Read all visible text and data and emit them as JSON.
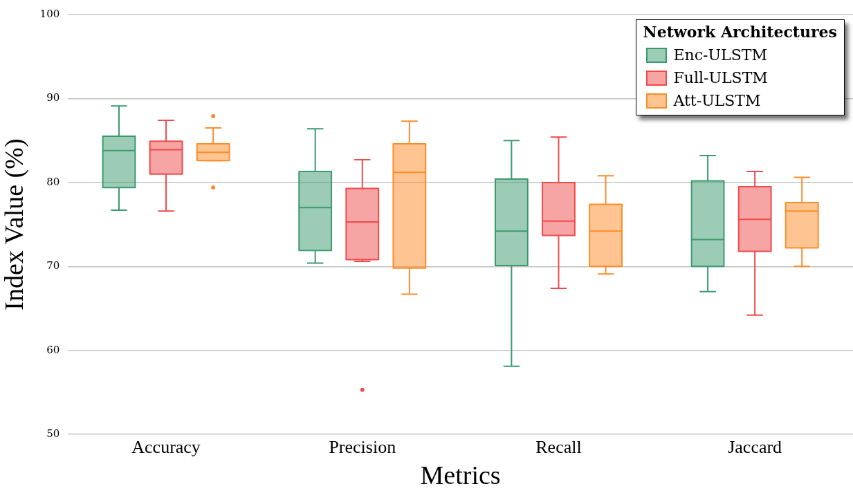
{
  "chart_data": {
    "type": "box",
    "xlabel": "Metrics",
    "ylabel": "Index Value (%)",
    "legend_title": "Network Architectures",
    "legend": "top right",
    "grid": "y",
    "categories": [
      "Accuracy",
      "Precision",
      "Recall",
      "Jaccard"
    ],
    "ylim": [
      50,
      100
    ],
    "yticks": [
      50,
      60,
      70,
      80,
      90,
      100
    ],
    "series": [
      {
        "name": "Enc-ULSTM",
        "color": "#3a9a6e",
        "boxes": [
          {
            "low": 76.7,
            "q1": 79.4,
            "median": 83.8,
            "q3": 85.5,
            "high": 89.1
          },
          {
            "low": 70.4,
            "q1": 71.9,
            "median": 77.0,
            "q3": 81.3,
            "high": 86.4
          },
          {
            "low": 58.1,
            "q1": 70.1,
            "median": 74.2,
            "q3": 80.4,
            "high": 85.0
          },
          {
            "low": 67.0,
            "q1": 70.0,
            "median": 73.2,
            "q3": 80.2,
            "high": 83.2
          }
        ]
      },
      {
        "name": "Full-ULSTM",
        "color": "#f04a4a",
        "boxes": [
          {
            "low": 76.6,
            "q1": 81.0,
            "median": 83.9,
            "q3": 84.9,
            "high": 87.4
          },
          {
            "low": 70.6,
            "q1": 70.8,
            "median": 75.3,
            "q3": 79.3,
            "high": 82.7,
            "outliers": [
              55.3
            ]
          },
          {
            "low": 67.4,
            "q1": 73.7,
            "median": 75.4,
            "q3": 80.0,
            "high": 85.4
          },
          {
            "low": 64.2,
            "q1": 71.8,
            "median": 75.6,
            "q3": 79.5,
            "high": 81.3
          }
        ]
      },
      {
        "name": "Att-ULSTM",
        "color": "#fd8c28",
        "boxes": [
          {
            "low": 82.6,
            "q1": 82.6,
            "median": 83.6,
            "q3": 84.6,
            "high": 86.5,
            "outliers": [
              87.9,
              79.4
            ]
          },
          {
            "low": 66.7,
            "q1": 69.8,
            "median": 81.2,
            "q3": 84.6,
            "high": 87.3
          },
          {
            "low": 69.1,
            "q1": 70.0,
            "median": 74.2,
            "q3": 77.4,
            "high": 80.8
          },
          {
            "low": 70.0,
            "q1": 72.2,
            "median": 76.6,
            "q3": 77.6,
            "high": 80.6
          }
        ]
      }
    ]
  }
}
